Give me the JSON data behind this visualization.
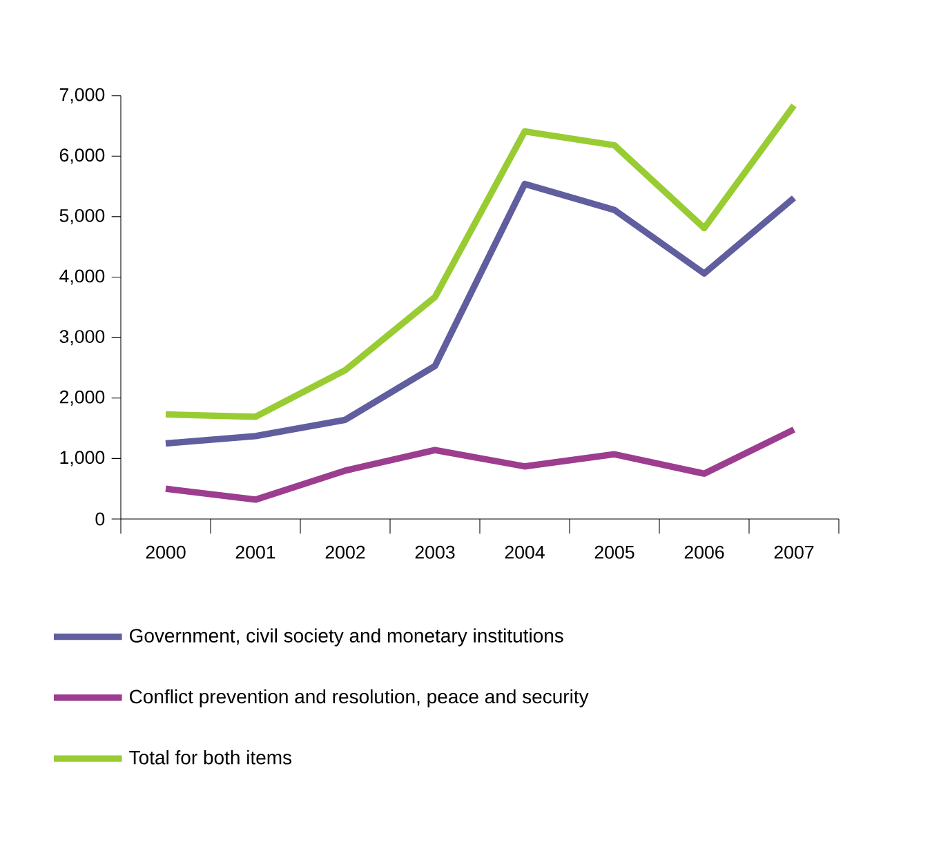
{
  "chart_data": {
    "type": "line",
    "categories": [
      "2000",
      "2001",
      "2002",
      "2003",
      "2004",
      "2005",
      "2006",
      "2007"
    ],
    "series": [
      {
        "name": "Government, civil society and monetary institutions",
        "color": "#605e9e",
        "values": [
          1250,
          1370,
          1640,
          2530,
          5540,
          5110,
          4060,
          5310
        ]
      },
      {
        "name": "Conflict prevention and resolution, peace and security",
        "color": "#9c3d8f",
        "values": [
          500,
          320,
          800,
          1140,
          870,
          1070,
          750,
          1480
        ]
      },
      {
        "name": "Total for both items",
        "color": "#99cc33",
        "values": [
          1730,
          1690,
          2460,
          3670,
          6410,
          6180,
          4810,
          6840
        ]
      }
    ],
    "ylim": [
      0,
      7000
    ],
    "yticks": [
      0,
      {
        "value": 1000,
        "label": "1,000"
      },
      {
        "value": 2000,
        "label": "2,000"
      },
      {
        "value": 3000,
        "label": "3,000"
      },
      {
        "value": 4000,
        "label": "4,000"
      },
      {
        "value": 5000,
        "label": "5,000"
      },
      {
        "value": 6000,
        "label": "6,000"
      },
      {
        "value": 7000,
        "label": "7,000"
      }
    ],
    "grid": false,
    "legend": "bottom",
    "marker": "none",
    "line_style": "solid"
  }
}
